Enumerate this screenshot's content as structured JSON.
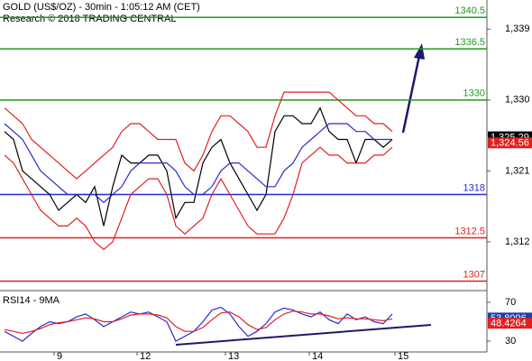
{
  "header": {
    "title": "GOLD (US$/OZ) - 30min - 1:05:12 AM (CET)",
    "subtitle": "Research © 2018 TRADING CENTRAL"
  },
  "chart_data": [
    {
      "type": "line",
      "xlim": [
        0,
        53.5
      ],
      "xticks": [
        {
          "value": 5.5,
          "label": "9"
        },
        {
          "value": 14.7,
          "label": "12"
        },
        {
          "value": 24.5,
          "label": "13"
        },
        {
          "value": 33.8,
          "label": "14"
        },
        {
          "value": 43.3,
          "label": "15"
        }
      ],
      "ylim": [
        1305.8,
        1342.7
      ],
      "yticks": [
        {
          "value": 1339,
          "label": "1,339"
        },
        {
          "value": 1330,
          "label": "1,330"
        },
        {
          "value": 1321,
          "label": "1,321"
        },
        {
          "value": 1312,
          "label": "1,312"
        }
      ],
      "series": [
        {
          "color": "#000000",
          "values": [
            1326,
            1325,
            1321,
            1320,
            1319,
            1318,
            1316,
            1317,
            1318,
            1317,
            1319,
            1314,
            1319,
            1323,
            1322,
            1322,
            1323,
            1323,
            1321,
            1315,
            1317,
            1317,
            1322,
            1324,
            1325,
            1322,
            1320,
            1318,
            1316,
            1318,
            1326,
            1328,
            1328,
            1327,
            1327,
            1329,
            1326,
            1325,
            1325,
            1322,
            1325,
            1325,
            1324,
            1325
          ]
        },
        {
          "color": "#2b2bd0",
          "values": [
            1327,
            1326,
            1325,
            1323,
            1321,
            1320,
            1319,
            1318,
            1318,
            1318,
            1318,
            1317,
            1318,
            1319,
            1321,
            1322,
            1322,
            1322,
            1322,
            1321,
            1319,
            1318,
            1318,
            1319,
            1321,
            1322,
            1322,
            1321,
            1320,
            1319,
            1319,
            1321,
            1322,
            1324,
            1325,
            1326,
            1327,
            1327,
            1327,
            1326,
            1326,
            1325,
            1325,
            1325
          ]
        },
        {
          "color": "#e02020",
          "values": [
            1329,
            1328,
            1327,
            1325,
            1324,
            1323,
            1322,
            1321,
            1320,
            1321,
            1322,
            1323,
            1324,
            1326,
            1327,
            1327,
            1326,
            1325,
            1325,
            1325,
            1322,
            1321,
            1323,
            1326,
            1328,
            1328,
            1327,
            1326,
            1324,
            1324,
            1328,
            1331,
            1331,
            1331,
            1331,
            1331,
            1331,
            1330,
            1329,
            1328,
            1328,
            1327,
            1327,
            1326
          ]
        },
        {
          "color": "#e02020",
          "values": [
            1323,
            1322,
            1320,
            1318,
            1316,
            1315,
            1314,
            1314,
            1315,
            1314,
            1312,
            1311,
            1312,
            1315,
            1318,
            1319,
            1320,
            1320,
            1318,
            1314,
            1313,
            1314,
            1315,
            1318,
            1320,
            1318,
            1316,
            1314,
            1313,
            1313,
            1313,
            1315,
            1318,
            1322,
            1323,
            1324,
            1323,
            1323,
            1322,
            1322,
            1322,
            1323,
            1323,
            1324
          ]
        }
      ],
      "levels": [
        {
          "value": 1340.5,
          "color": "#1f9a1f"
        },
        {
          "value": 1336.5,
          "color": "#1f9a1f"
        },
        {
          "value": 1330,
          "color": "#1f9a1f"
        },
        {
          "value": 1318,
          "color": "#2b2bd0"
        },
        {
          "value": 1312.5,
          "color": "#e02020"
        },
        {
          "value": 1307,
          "color": "#e02020"
        }
      ],
      "price_markers": [
        {
          "value": 1325.34,
          "label": "1,325.34",
          "color": "#1e3fa8"
        },
        {
          "value": 1325.29,
          "label": "1,325.29",
          "color": "#000000"
        },
        {
          "value": 1324.56,
          "label": "1,324.56",
          "color": "#e02020"
        }
      ]
    },
    {
      "type": "line",
      "title": "RSI14 - 9MA",
      "xlim": [
        0,
        53.5
      ],
      "ylim": [
        18.8,
        79.3
      ],
      "yticks": [
        70,
        30
      ],
      "series": [
        {
          "color": "#2b2bd0",
          "values": [
            40,
            35,
            30,
            38,
            45,
            50,
            48,
            50,
            55,
            58,
            52,
            45,
            50,
            55,
            60,
            58,
            60,
            55,
            50,
            30,
            35,
            40,
            50,
            62,
            65,
            58,
            45,
            35,
            40,
            48,
            60,
            64,
            62,
            58,
            55,
            60,
            52,
            48,
            58,
            52,
            55,
            50,
            48,
            58
          ]
        },
        {
          "color": "#e02020",
          "values": [
            42,
            40,
            38,
            40,
            43,
            47,
            49,
            50,
            52,
            54,
            53,
            50,
            50,
            53,
            57,
            58,
            58,
            57,
            54,
            45,
            40,
            40,
            44,
            52,
            59,
            60,
            55,
            47,
            42,
            44,
            52,
            58,
            61,
            60,
            58,
            58,
            56,
            53,
            54,
            53,
            53,
            52,
            51,
            53
          ]
        }
      ],
      "price_markers": [
        {
          "value": 53.8096,
          "color": "#1e3fa8"
        },
        {
          "value": 48.4264,
          "color": "#e02020"
        }
      ]
    }
  ]
}
